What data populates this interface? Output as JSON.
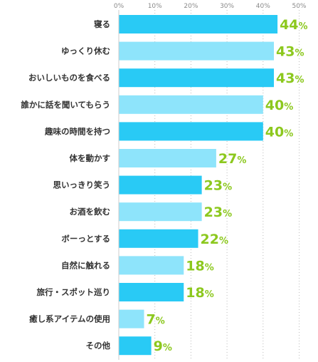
{
  "chart_data": {
    "type": "bar",
    "orientation": "horizontal",
    "x_axis": {
      "min": 0,
      "max": 50,
      "ticks": [
        0,
        10,
        20,
        30,
        40,
        50
      ],
      "tick_suffix": "%",
      "grid": true,
      "grid_style": "dotted"
    },
    "value_suffix": "%",
    "categories": [
      "寝る",
      "ゆっくり休む",
      "おいしいものを食べる",
      "誰かに話を聞いてもらう",
      "趣味の時間を持つ",
      "体を動かす",
      "思いっきり笑う",
      "お酒を飲む",
      "ボーっとする",
      "自然に触れる",
      "旅行・スポット巡り",
      "癒し系アイテムの使用",
      "その他"
    ],
    "values": [
      44,
      43,
      43,
      40,
      40,
      27,
      23,
      23,
      22,
      18,
      18,
      7,
      9
    ],
    "colors": {
      "bar_dark": "#29caf5",
      "bar_light": "#8ee4fb",
      "value_label": "#8cc81e",
      "category_label": "#333333",
      "tick_label": "#8a8a8a",
      "grid": "#bbbbbb",
      "axis": "#cccccc"
    },
    "bar_color_pattern": "alternating dark/light starting dark"
  }
}
